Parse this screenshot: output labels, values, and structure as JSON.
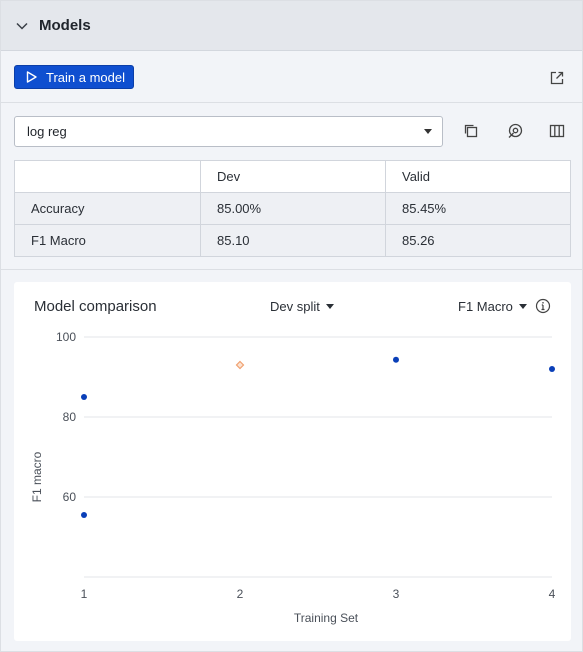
{
  "panel": {
    "title": "Models"
  },
  "toolbar": {
    "train_label": "Train a model"
  },
  "model_select": {
    "value": "log reg"
  },
  "metrics_table": {
    "headers": [
      "",
      "Dev",
      "Valid"
    ],
    "rows": [
      [
        "Accuracy",
        "85.00%",
        "85.45%"
      ],
      [
        "F1 Macro",
        "85.10",
        "85.26"
      ]
    ]
  },
  "comparison": {
    "title": "Model comparison",
    "split_label": "Dev split",
    "metric_label": "F1 Macro"
  },
  "colors": {
    "accent": "#0f4fd0",
    "point": "#0a3fb8",
    "highlight": "#f0a070"
  },
  "chart_data": {
    "type": "scatter",
    "xlabel": "Training Set",
    "ylabel": "F1 macro",
    "x_ticks": [
      "1",
      "2",
      "3",
      "4"
    ],
    "y_ticks": [
      60,
      80,
      100
    ],
    "ylim": [
      40,
      100
    ],
    "grid": true,
    "points": [
      {
        "x": 1,
        "y": 85,
        "highlight": false
      },
      {
        "x": 1,
        "y": 55.5,
        "highlight": false
      },
      {
        "x": 2,
        "y": 93,
        "highlight": true
      },
      {
        "x": 3,
        "y": 94.3,
        "highlight": false
      },
      {
        "x": 4,
        "y": 92,
        "highlight": false
      }
    ]
  }
}
